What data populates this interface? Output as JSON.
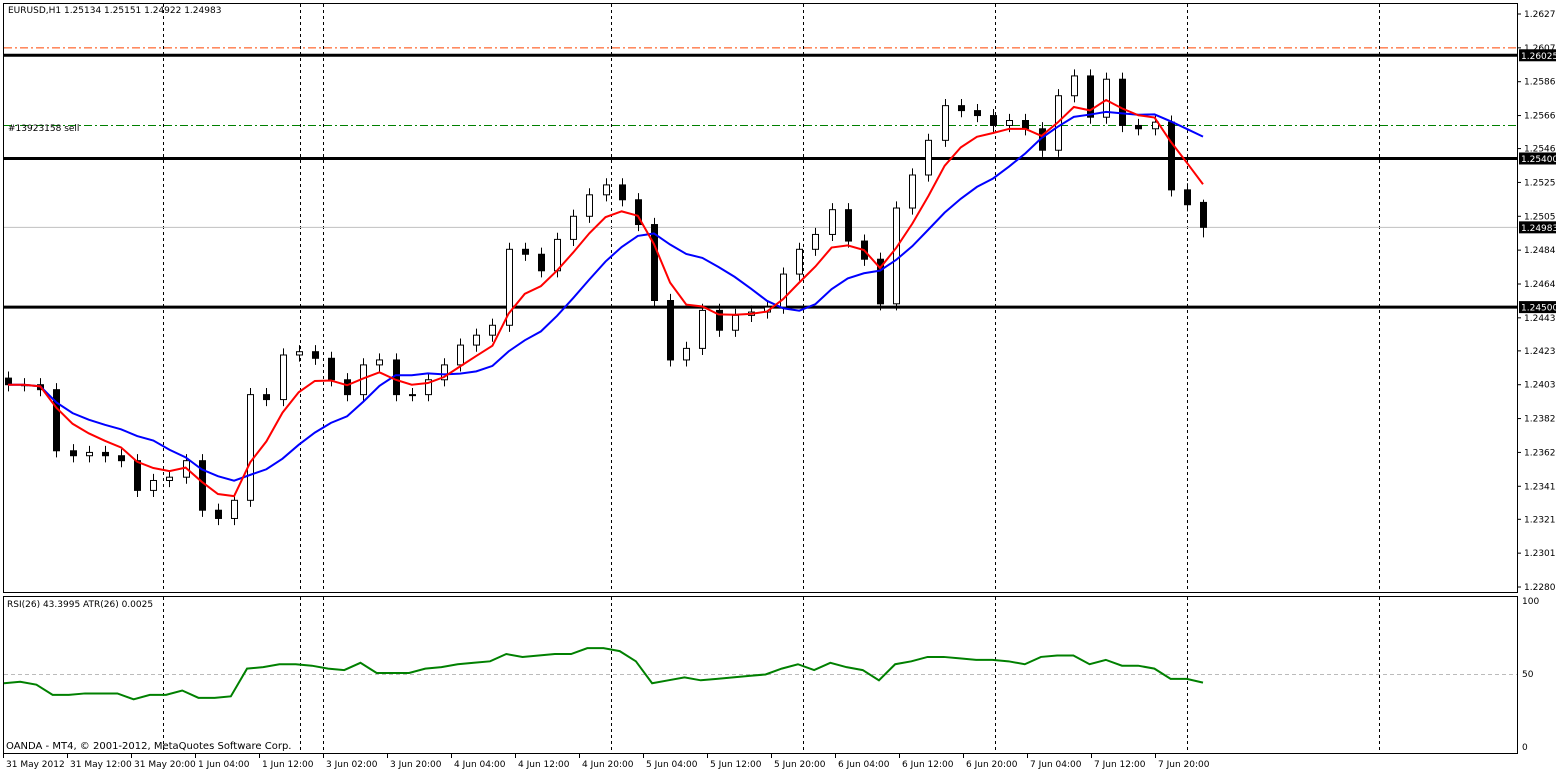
{
  "header": {
    "symbol_info": "EURUSD,H1  1.25134 1.25151 1.24922 1.24983"
  },
  "order_label": "#13923158 sell",
  "indicator_info": "RSI(26) 43.3995  ATR(26) 0.0025",
  "copyright": "OANDA - MT4, © 2001-2012, MetaQuotes Software Corp.",
  "colors": {
    "bull_candle": "#ffffff",
    "bear_candle": "#000000",
    "fast_ma": "#ff0000",
    "slow_ma": "#0000ff",
    "rsi": "#008000",
    "sell_line": "#008000",
    "stop_line": "#ff4500",
    "bid_line": "#c0c0c0"
  },
  "chart_data": [
    {
      "type": "candlestick",
      "symbol": "EURUSD",
      "timeframe": "H1",
      "last_ohlc": {
        "open": 1.25134,
        "high": 1.25151,
        "low": 1.24922,
        "close": 1.24983
      },
      "closes": [
        1.2403,
        1.2403,
        1.24,
        1.2363,
        1.236,
        1.2362,
        1.236,
        1.2357,
        1.2339,
        1.2345,
        1.2347,
        1.2357,
        1.2327,
        1.2322,
        1.2333,
        1.2397,
        1.2394,
        1.2421,
        1.2423,
        1.2419,
        1.2406,
        1.2397,
        1.2415,
        1.2418,
        1.2397,
        1.2397,
        1.2406,
        1.2415,
        1.2427,
        1.2433,
        1.2439,
        1.2485,
        1.2482,
        1.2472,
        1.2491,
        1.2505,
        1.2518,
        1.2524,
        1.2515,
        1.25,
        1.2454,
        1.2418,
        1.2425,
        1.2448,
        1.2436,
        1.2445,
        1.2447,
        1.245,
        1.247,
        1.2485,
        1.2494,
        1.2509,
        1.249,
        1.2479,
        1.2452,
        1.251,
        1.253,
        1.2551,
        1.2572,
        1.2569,
        1.2566,
        1.256,
        1.2563,
        1.2558,
        1.2545,
        1.2578,
        1.259,
        1.2565,
        1.2588,
        1.256,
        1.2558,
        1.2562,
        1.2521,
        1.2512,
        1.24983
      ],
      "ylim": [
        1.22805,
        1.26275
      ],
      "y_ticks": [
        "1.26275",
        "1.26070",
        "1.25865",
        "1.25660",
        "1.25460",
        "1.25255",
        "1.25050",
        "1.24845",
        "1.24640",
        "1.24435",
        "1.24235",
        "1.24030",
        "1.23825",
        "1.23620",
        "1.23415",
        "1.23215",
        "1.23010",
        "1.22805"
      ],
      "horizontal_lines": [
        {
          "price": 1.26025,
          "label": "1.26025"
        },
        {
          "price": 1.254,
          "label": "1.25400"
        },
        {
          "price": 1.245,
          "label": "1.24500"
        }
      ],
      "bid_line": {
        "price": 1.24983,
        "label": "1.24983"
      },
      "sell_order_price": 1.256,
      "stop_line_price": 1.2607,
      "x_ticks": [
        "31 May 2012",
        "31 May 12:00",
        "31 May 20:00",
        "1 Jun 04:00",
        "1 Jun 12:00",
        "3 Jun 02:00",
        "3 Jun 20:00",
        "4 Jun 04:00",
        "4 Jun 12:00",
        "4 Jun 20:00",
        "5 Jun 04:00",
        "5 Jun 12:00",
        "5 Jun 20:00",
        "6 Jun 04:00",
        "6 Jun 12:00",
        "6 Jun 20:00",
        "7 Jun 04:00",
        "7 Jun 12:00",
        "7 Jun 20:00"
      ],
      "grid": false
    },
    {
      "type": "line",
      "name": "RSI(26)",
      "values": [
        43,
        44,
        42,
        35,
        35,
        36,
        36,
        36,
        32,
        35,
        35,
        38,
        33,
        33,
        34,
        53,
        54,
        56,
        56,
        55,
        53,
        52,
        57,
        50,
        50,
        50,
        53,
        54,
        56,
        57,
        58,
        63,
        61,
        62,
        63,
        63,
        67,
        67,
        65,
        58,
        43,
        45,
        47,
        45,
        46,
        47,
        48,
        49,
        53,
        56,
        52,
        57,
        54,
        52,
        45,
        56,
        58,
        61,
        61,
        60,
        59,
        59,
        58,
        56,
        61,
        62,
        62,
        56,
        59,
        55,
        55,
        53,
        46,
        46,
        43.4
      ],
      "ylim": [
        0,
        100
      ],
      "y_ticks": [
        "100",
        "50",
        "0"
      ]
    }
  ]
}
